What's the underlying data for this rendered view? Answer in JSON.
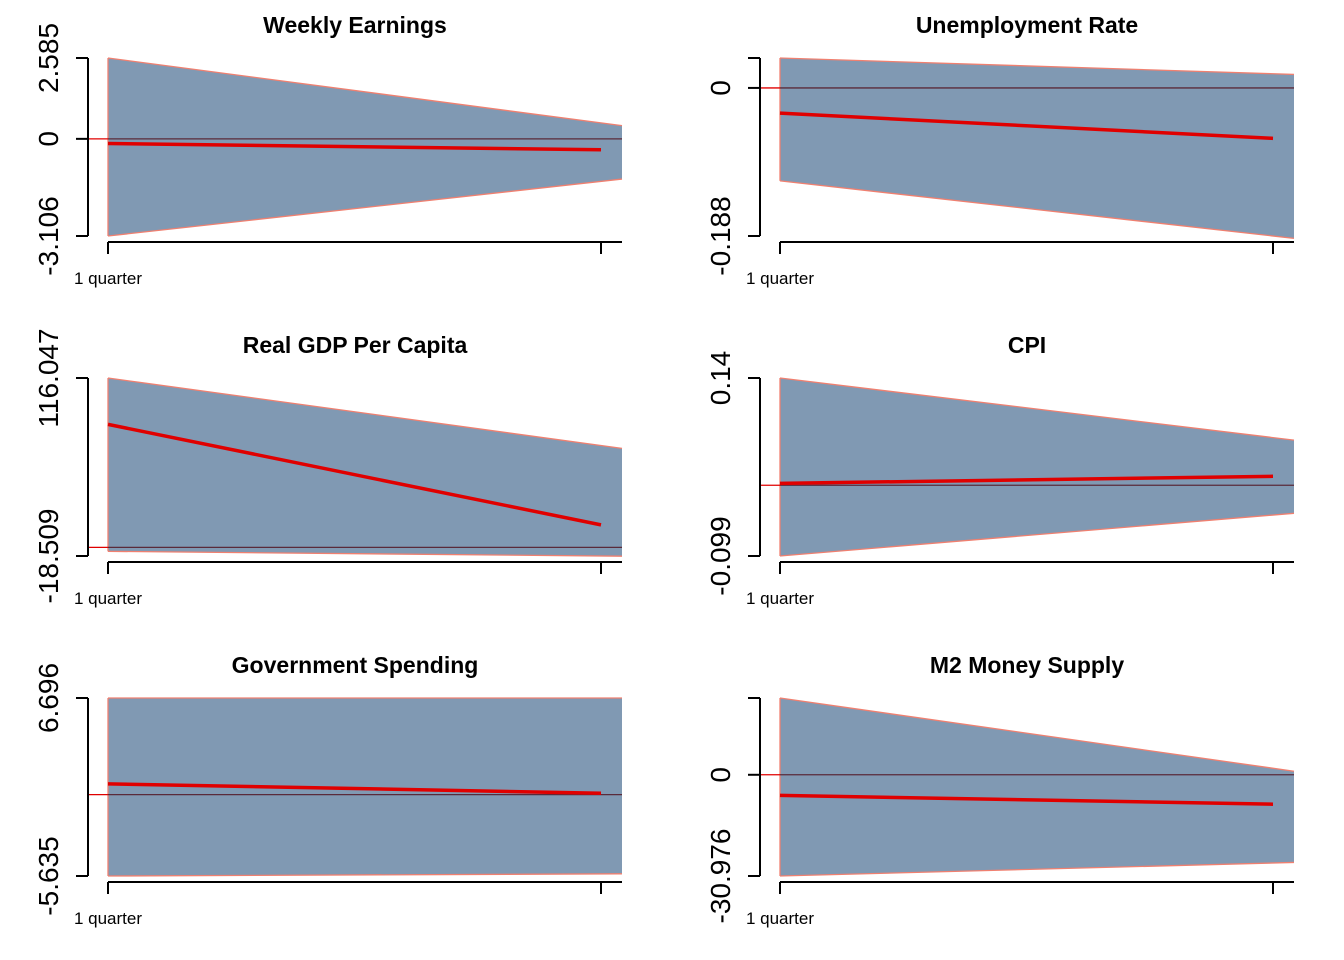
{
  "colors": {
    "band_fill": "#8099b3",
    "band_edge": "#f08070",
    "irf_line": "#e00000",
    "zero_line": "#5a2a3a",
    "axis": "#000000"
  },
  "chart_data": [
    {
      "type": "area",
      "title": "Weekly Earnings",
      "x": [
        1,
        2
      ],
      "xtick_labels": [
        "1 quarter",
        ""
      ],
      "ytick_values": [
        -3.106,
        0,
        2.585
      ],
      "ytick_labels": [
        "-3.106",
        "0",
        "2.585"
      ],
      "ylim": [
        -3.106,
        2.585
      ],
      "lower": [
        -3.106,
        -1.36
      ],
      "upper": [
        2.585,
        0.51
      ],
      "response": [
        -0.15,
        -0.35
      ],
      "zero_line": 0
    },
    {
      "type": "area",
      "title": "Unemployment Rate",
      "x": [
        1,
        2
      ],
      "xtick_labels": [
        "1 quarter",
        ""
      ],
      "ytick_values": [
        -0.188,
        0
      ],
      "ytick_labels": [
        "-0.188",
        "0"
      ],
      "ylim": [
        -0.188,
        0.038
      ],
      "lower": [
        -0.118,
        -0.188
      ],
      "upper": [
        0.038,
        0.018
      ],
      "response": [
        -0.032,
        -0.064
      ],
      "zero_line": 0
    },
    {
      "type": "area",
      "title": "Real GDP Per Capita",
      "x": [
        1,
        2
      ],
      "xtick_labels": [
        "1 quarter",
        ""
      ],
      "ytick_values": [
        -18.509,
        116.047
      ],
      "ytick_labels": [
        "-18.509",
        "116.047"
      ],
      "ylim": [
        -18.509,
        116.047
      ],
      "lower": [
        -15.0,
        -18.509
      ],
      "upper": [
        116.047,
        65.0
      ],
      "response": [
        81.0,
        5.0
      ],
      "zero_line": -12.0
    },
    {
      "type": "area",
      "title": "CPI",
      "x": [
        1,
        2
      ],
      "xtick_labels": [
        "1 quarter",
        ""
      ],
      "ytick_values": [
        -0.099,
        0.14
      ],
      "ytick_labels": [
        "-0.099",
        "0.14"
      ],
      "ylim": [
        -0.099,
        0.14
      ],
      "lower": [
        -0.099,
        -0.044
      ],
      "upper": [
        0.14,
        0.06
      ],
      "response": [
        -0.0015,
        0.008
      ],
      "zero_line": -0.004
    },
    {
      "type": "area",
      "title": "Government Spending",
      "x": [
        1,
        2
      ],
      "xtick_labels": [
        "1 quarter",
        ""
      ],
      "ytick_values": [
        -5.635,
        6.696
      ],
      "ytick_labels": [
        "-5.635",
        "6.696"
      ],
      "ylim": [
        -5.635,
        6.696
      ],
      "lower": [
        -5.635,
        -5.49
      ],
      "upper": [
        6.696,
        6.696
      ],
      "response": [
        0.75,
        0.1
      ],
      "zero_line": 0
    },
    {
      "type": "area",
      "title": "M2 Money Supply",
      "x": [
        1,
        2
      ],
      "xtick_labels": [
        "1 quarter",
        ""
      ],
      "ytick_values": [
        -30.976,
        0
      ],
      "ytick_labels": [
        "-30.976",
        "0"
      ],
      "ylim": [
        -30.976,
        23.5
      ],
      "lower": [
        -30.976,
        -27.0
      ],
      "upper": [
        23.5,
        2.0
      ],
      "response": [
        -6.3,
        -9.0
      ],
      "zero_line": 0
    }
  ]
}
